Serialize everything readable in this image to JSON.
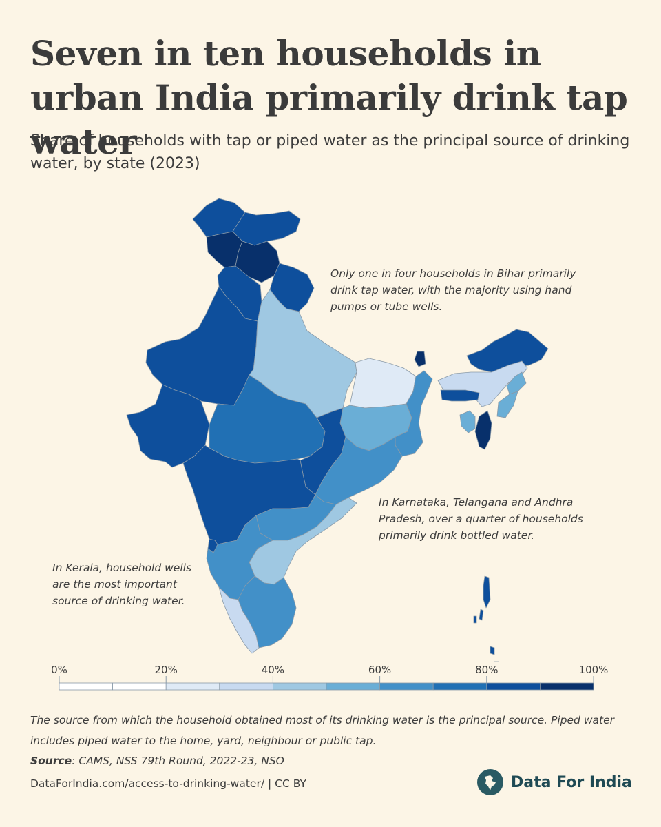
{
  "title": "Seven in ten households in urban India primarily drink tap water",
  "subtitle": "Share of households with tap or piped water as the principal source of drinking water, by state (2023)",
  "annotations": {
    "bihar": "Only one in four households in Bihar primarily drink tap water, with the majority using hand pumps or tube wells.",
    "south": "In Karnataka, Telangana and Andhra Pradesh, over a quarter of households primarily drink bottled water.",
    "kerala": "In Kerala, household wells are the most important source of drinking water."
  },
  "chart_data": {
    "type": "choropleth",
    "title": "Seven in ten households in urban India primarily drink tap water",
    "metric": "Share of households with tap or piped water as the principal source of drinking water",
    "year": 2023,
    "regions": [
      {
        "name": "Jammu & Kashmir",
        "bin": "80-90%"
      },
      {
        "name": "Ladakh",
        "bin": "80-90%"
      },
      {
        "name": "Himachal Pradesh",
        "bin": "90-100%"
      },
      {
        "name": "Punjab",
        "bin": "90-100%"
      },
      {
        "name": "Uttarakhand",
        "bin": "80-90%"
      },
      {
        "name": "Haryana",
        "bin": "80-90%"
      },
      {
        "name": "Rajasthan",
        "bin": "80-90%"
      },
      {
        "name": "Gujarat",
        "bin": "80-90%"
      },
      {
        "name": "Uttar Pradesh",
        "bin": "40-50%"
      },
      {
        "name": "Madhya Pradesh",
        "bin": "70-80%"
      },
      {
        "name": "Bihar",
        "bin": "20-30%"
      },
      {
        "name": "Jharkhand",
        "bin": "50-60%"
      },
      {
        "name": "West Bengal",
        "bin": "60-70%"
      },
      {
        "name": "Chhattisgarh",
        "bin": "80-90%"
      },
      {
        "name": "Odisha",
        "bin": "60-70%"
      },
      {
        "name": "Maharashtra",
        "bin": "80-90%"
      },
      {
        "name": "Telangana",
        "bin": "60-70%"
      },
      {
        "name": "Andhra Pradesh",
        "bin": "40-50%"
      },
      {
        "name": "Karnataka",
        "bin": "60-70%"
      },
      {
        "name": "Goa",
        "bin": "80-90%"
      },
      {
        "name": "Kerala",
        "bin": "30-40%"
      },
      {
        "name": "Tamil Nadu",
        "bin": "60-70%"
      },
      {
        "name": "Sikkim",
        "bin": "90-100%"
      },
      {
        "name": "Arunachal Pradesh",
        "bin": "80-90%"
      },
      {
        "name": "Assam",
        "bin": "30-40%"
      },
      {
        "name": "Meghalaya",
        "bin": "80-90%"
      },
      {
        "name": "Nagaland",
        "bin": "50-60%"
      },
      {
        "name": "Manipur",
        "bin": "50-60%"
      },
      {
        "name": "Mizoram",
        "bin": "90-100%"
      },
      {
        "name": "Tripura",
        "bin": "50-60%"
      },
      {
        "name": "Andaman & Nicobar Islands",
        "bin": "80-90%"
      }
    ],
    "legend": {
      "ticks": [
        "0%",
        "20%",
        "40%",
        "60%",
        "80%",
        "100%"
      ],
      "bins": [
        "0-10%",
        "10-20%",
        "20-30%",
        "30-40%",
        "40-50%",
        "50-60%",
        "60-70%",
        "70-80%",
        "80-90%",
        "90-100%"
      ],
      "colors": [
        "#ffffff",
        "#ffffff",
        "#dfeaf6",
        "#c8daf0",
        "#9fc8e2",
        "#6aaed6",
        "#4290c8",
        "#2170b4",
        "#0e4f9c",
        "#08306b"
      ]
    }
  },
  "footnote": "The source from which the household obtained most of its drinking water is the principal source. Piped water includes piped water to the home, yard, neighbour or public tap.",
  "source": {
    "label": "Source",
    "text": ": CAMS, NSS 79th Round, 2022-23, NSO"
  },
  "footer": {
    "url": "DataForIndia.com/access-to-drinking-water/",
    "separator": " | ",
    "license": "CC BY"
  },
  "brand": {
    "name": "Data For India"
  }
}
